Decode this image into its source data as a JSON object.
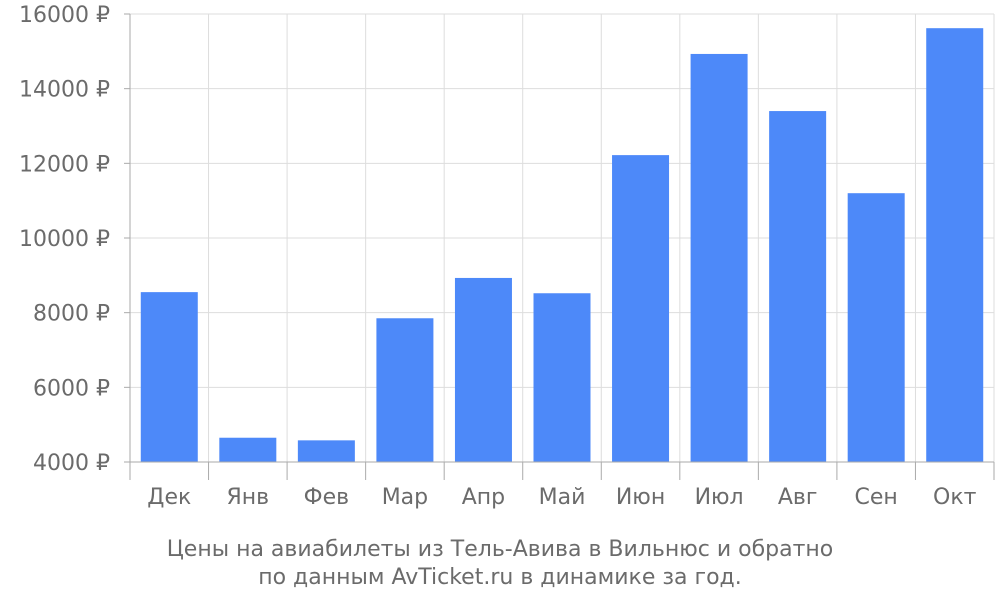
{
  "chart_data": {
    "type": "bar",
    "categories": [
      "Дек",
      "Янв",
      "Фев",
      "Мар",
      "Апр",
      "Май",
      "Июн",
      "Июл",
      "Авг",
      "Сен",
      "Окт"
    ],
    "values": [
      8550,
      4650,
      4580,
      7850,
      8930,
      8520,
      12220,
      14930,
      13400,
      11200,
      15620
    ],
    "y_ticks": [
      4000,
      6000,
      8000,
      10000,
      12000,
      14000,
      16000
    ],
    "y_tick_suffix": " ₽",
    "ylim": [
      4000,
      16000
    ],
    "grid": true,
    "bar_color": "#4d89f9",
    "caption_lines": [
      "Цены на авиабилеты из Тель-Авива в Вильнюс и обратно",
      "по данным AvTicket.ru в динамике за год."
    ]
  }
}
